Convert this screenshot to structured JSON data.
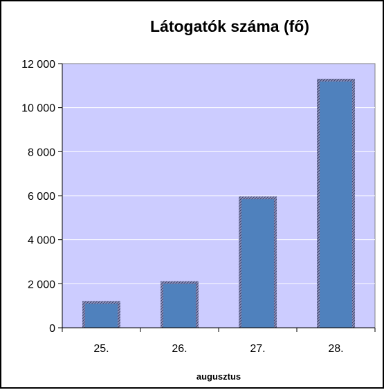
{
  "chart_data": {
    "type": "bar",
    "title": "Látogatók száma (fő)",
    "categories": [
      "25.",
      "26.",
      "27.",
      "28."
    ],
    "values": [
      1150,
      2050,
      5900,
      11250
    ],
    "xlabel": "augusztus",
    "ylabel": "",
    "ylim": [
      0,
      12000
    ],
    "yticks": [
      0,
      2000,
      4000,
      6000,
      8000,
      10000,
      12000
    ],
    "ytick_labels": [
      "0",
      "2 000",
      "4 000",
      "6 000",
      "8 000",
      "10 000",
      "12 000"
    ],
    "grid": true,
    "legend": "none",
    "colors": {
      "plot_background": "#ccccff",
      "bar_fill": "#4f81bd",
      "bar_shadow": "#555577",
      "gridline": "#ffffff"
    }
  }
}
